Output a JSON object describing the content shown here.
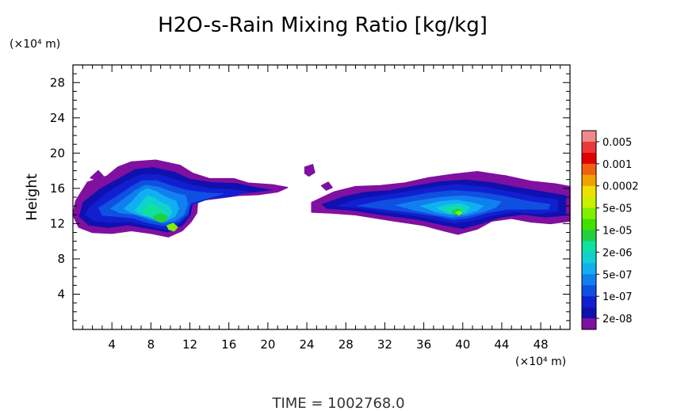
{
  "chart_data": {
    "type": "heatmap",
    "title": "H2O-s-Rain Mixing Ratio [kg/kg]",
    "xlabel": "",
    "ylabel": "Height",
    "x_unit_label": "(×10⁴ m)",
    "y_unit_label": "(×10⁴ m)",
    "xlim": [
      0,
      51
    ],
    "ylim": [
      0,
      30
    ],
    "x_ticks": [
      4,
      8,
      12,
      16,
      20,
      24,
      28,
      32,
      36,
      40,
      44,
      48
    ],
    "y_ticks": [
      4,
      8,
      12,
      16,
      20,
      24,
      28
    ],
    "footer": "TIME = 1002768.0",
    "colorbar": {
      "label_values": [
        "0.005",
        "0.001",
        "0.0002",
        "5e-05",
        "1e-05",
        "2e-06",
        "5e-07",
        "1e-07",
        "2e-08"
      ],
      "colors_top_to_bottom": [
        "#f08a8a",
        "#e83a3a",
        "#e00000",
        "#f06010",
        "#f0a000",
        "#f0e000",
        "#c8f000",
        "#80f000",
        "#40e000",
        "#20d040",
        "#10e0a0",
        "#10d0d0",
        "#10b0f0",
        "#1080f0",
        "#1050e0",
        "#1020d0",
        "#1010b0",
        "#8010a0"
      ]
    },
    "regions": [
      {
        "level": 1,
        "points": [
          [
            0.3,
            14.6
          ],
          [
            1.5,
            16.7
          ],
          [
            3.5,
            17.4
          ],
          [
            4.6,
            18.4
          ],
          [
            6.0,
            19.0
          ],
          [
            8.5,
            19.2
          ],
          [
            11.0,
            18.6
          ],
          [
            12.3,
            17.7
          ],
          [
            14.0,
            17.1
          ],
          [
            16.5,
            17.1
          ],
          [
            18.0,
            16.6
          ],
          [
            20.5,
            16.4
          ],
          [
            22.0,
            16.1
          ],
          [
            21.0,
            15.6
          ],
          [
            19.0,
            15.3
          ],
          [
            17.0,
            15.2
          ],
          [
            15.0,
            14.9
          ],
          [
            12.8,
            14.6
          ],
          [
            12.7,
            13.2
          ],
          [
            12.1,
            12.2
          ],
          [
            11.2,
            11.2
          ],
          [
            9.8,
            10.5
          ],
          [
            8.0,
            10.9
          ],
          [
            6.0,
            11.2
          ],
          [
            4.0,
            10.9
          ],
          [
            2.0,
            11.0
          ],
          [
            0.6,
            11.6
          ],
          [
            0.0,
            13.0
          ]
        ]
      },
      {
        "level": 1,
        "points": [
          [
            24.5,
            14.4
          ],
          [
            26.8,
            15.6
          ],
          [
            29.0,
            16.2
          ],
          [
            31.5,
            16.3
          ],
          [
            34.0,
            16.6
          ],
          [
            36.5,
            17.2
          ],
          [
            39.0,
            17.6
          ],
          [
            41.5,
            17.9
          ],
          [
            44.5,
            17.4
          ],
          [
            47.0,
            16.8
          ],
          [
            49.5,
            16.5
          ],
          [
            51.0,
            16.2
          ],
          [
            51.0,
            12.3
          ],
          [
            49.0,
            12.0
          ],
          [
            47.0,
            12.2
          ],
          [
            45.0,
            12.6
          ],
          [
            43.0,
            12.3
          ],
          [
            41.5,
            11.4
          ],
          [
            39.5,
            10.8
          ],
          [
            38.0,
            11.2
          ],
          [
            36.0,
            11.8
          ],
          [
            33.0,
            12.3
          ],
          [
            29.0,
            13.0
          ],
          [
            26.5,
            13.2
          ],
          [
            24.5,
            13.3
          ]
        ]
      },
      {
        "level": 1,
        "points": [
          [
            23.8,
            18.4
          ],
          [
            24.6,
            18.7
          ],
          [
            24.8,
            17.8
          ],
          [
            24.2,
            17.4
          ],
          [
            23.8,
            17.7
          ]
        ]
      },
      {
        "level": 1,
        "points": [
          [
            25.5,
            16.3
          ],
          [
            26.2,
            16.7
          ],
          [
            26.6,
            16.1
          ],
          [
            26.0,
            15.8
          ]
        ]
      },
      {
        "level": 1,
        "points": [
          [
            1.8,
            17.2
          ],
          [
            2.6,
            18.0
          ],
          [
            3.1,
            17.4
          ],
          [
            2.5,
            16.9
          ]
        ]
      },
      {
        "level": 2,
        "points": [
          [
            1.0,
            14.4
          ],
          [
            2.8,
            16.0
          ],
          [
            4.8,
            17.2
          ],
          [
            6.4,
            18.2
          ],
          [
            8.2,
            18.4
          ],
          [
            10.4,
            17.9
          ],
          [
            12.0,
            17.1
          ],
          [
            14.3,
            16.7
          ],
          [
            16.8,
            16.6
          ],
          [
            19.0,
            16.1
          ],
          [
            20.5,
            15.8
          ],
          [
            18.2,
            15.5
          ],
          [
            16.0,
            15.3
          ],
          [
            14.0,
            15.0
          ],
          [
            12.3,
            14.3
          ],
          [
            12.1,
            13.0
          ],
          [
            11.3,
            11.8
          ],
          [
            9.7,
            11.0
          ],
          [
            7.8,
            11.4
          ],
          [
            5.6,
            11.8
          ],
          [
            3.6,
            11.5
          ],
          [
            1.6,
            11.8
          ],
          [
            0.6,
            12.8
          ]
        ]
      },
      {
        "level": 2,
        "points": [
          [
            25.5,
            14.2
          ],
          [
            27.8,
            15.1
          ],
          [
            30.0,
            15.6
          ],
          [
            32.5,
            15.8
          ],
          [
            35.0,
            16.3
          ],
          [
            37.6,
            16.8
          ],
          [
            40.3,
            17.0
          ],
          [
            43.0,
            16.7
          ],
          [
            45.8,
            16.1
          ],
          [
            48.5,
            15.6
          ],
          [
            50.6,
            15.2
          ],
          [
            50.6,
            12.9
          ],
          [
            48.5,
            12.7
          ],
          [
            46.2,
            13.0
          ],
          [
            44.0,
            12.7
          ],
          [
            42.0,
            12.0
          ],
          [
            40.0,
            11.4
          ],
          [
            38.0,
            11.8
          ],
          [
            35.5,
            12.4
          ],
          [
            32.0,
            12.9
          ],
          [
            28.5,
            13.5
          ],
          [
            26.0,
            13.7
          ]
        ]
      },
      {
        "level": 3,
        "points": [
          [
            1.8,
            14.0
          ],
          [
            3.6,
            15.6
          ],
          [
            5.4,
            16.8
          ],
          [
            7.0,
            17.6
          ],
          [
            8.8,
            17.6
          ],
          [
            10.6,
            17.0
          ],
          [
            12.2,
            16.4
          ],
          [
            14.2,
            16.0
          ],
          [
            16.4,
            15.9
          ],
          [
            18.2,
            15.6
          ],
          [
            16.0,
            15.0
          ],
          [
            14.0,
            14.8
          ],
          [
            12.0,
            14.0
          ],
          [
            11.9,
            12.9
          ],
          [
            11.0,
            12.0
          ],
          [
            9.6,
            11.3
          ],
          [
            7.8,
            11.7
          ],
          [
            5.8,
            12.2
          ],
          [
            4.0,
            12.1
          ],
          [
            2.2,
            12.3
          ],
          [
            1.2,
            13.0
          ]
        ]
      },
      {
        "level": 3,
        "points": [
          [
            27.0,
            14.0
          ],
          [
            29.2,
            14.8
          ],
          [
            31.6,
            15.2
          ],
          [
            34.0,
            15.6
          ],
          [
            36.6,
            16.1
          ],
          [
            39.3,
            16.5
          ],
          [
            42.0,
            16.2
          ],
          [
            44.6,
            15.7
          ],
          [
            47.4,
            15.1
          ],
          [
            49.8,
            14.7
          ],
          [
            49.8,
            13.4
          ],
          [
            47.6,
            13.1
          ],
          [
            45.2,
            13.3
          ],
          [
            43.0,
            12.9
          ],
          [
            41.0,
            12.3
          ],
          [
            39.2,
            12.0
          ],
          [
            37.4,
            12.4
          ],
          [
            35.0,
            12.9
          ],
          [
            32.0,
            13.3
          ],
          [
            29.0,
            13.8
          ]
        ]
      },
      {
        "level": 4,
        "points": [
          [
            2.6,
            13.8
          ],
          [
            4.3,
            15.0
          ],
          [
            5.8,
            16.1
          ],
          [
            7.1,
            16.9
          ],
          [
            8.6,
            16.9
          ],
          [
            10.2,
            16.3
          ],
          [
            11.8,
            15.8
          ],
          [
            13.8,
            15.5
          ],
          [
            15.6,
            15.4
          ],
          [
            14.0,
            14.9
          ],
          [
            12.1,
            14.3
          ],
          [
            11.8,
            13.1
          ],
          [
            10.9,
            12.2
          ],
          [
            9.5,
            11.7
          ],
          [
            7.9,
            12.0
          ],
          [
            6.1,
            12.6
          ],
          [
            4.3,
            12.8
          ],
          [
            3.0,
            12.9
          ]
        ]
      },
      {
        "level": 4,
        "points": [
          [
            29.0,
            14.0
          ],
          [
            31.5,
            14.6
          ],
          [
            34.0,
            15.0
          ],
          [
            36.5,
            15.5
          ],
          [
            39.0,
            15.8
          ],
          [
            41.6,
            15.6
          ],
          [
            44.0,
            15.2
          ],
          [
            46.6,
            14.6
          ],
          [
            49.0,
            14.2
          ],
          [
            48.8,
            13.6
          ],
          [
            46.6,
            13.6
          ],
          [
            44.6,
            13.6
          ],
          [
            42.6,
            13.2
          ],
          [
            40.6,
            12.6
          ],
          [
            39.0,
            12.4
          ],
          [
            37.4,
            12.8
          ],
          [
            35.0,
            13.2
          ],
          [
            32.0,
            13.6
          ]
        ]
      },
      {
        "level": 5,
        "points": [
          [
            3.8,
            13.7
          ],
          [
            5.2,
            14.8
          ],
          [
            6.4,
            15.8
          ],
          [
            7.4,
            16.4
          ],
          [
            8.7,
            16.2
          ],
          [
            10.2,
            15.6
          ],
          [
            11.6,
            15.2
          ],
          [
            11.8,
            14.2
          ],
          [
            11.4,
            13.0
          ],
          [
            10.5,
            12.3
          ],
          [
            9.3,
            12.0
          ],
          [
            7.9,
            12.4
          ],
          [
            6.3,
            13.0
          ],
          [
            4.8,
            13.2
          ]
        ]
      },
      {
        "level": 5,
        "points": [
          [
            33.0,
            14.1
          ],
          [
            35.2,
            14.6
          ],
          [
            37.6,
            15.0
          ],
          [
            40.0,
            15.2
          ],
          [
            42.2,
            14.9
          ],
          [
            44.0,
            14.5
          ],
          [
            43.4,
            13.8
          ],
          [
            41.8,
            13.2
          ],
          [
            40.2,
            12.8
          ],
          [
            38.8,
            12.7
          ],
          [
            37.2,
            13.0
          ],
          [
            35.0,
            13.5
          ]
        ]
      },
      {
        "level": 6,
        "points": [
          [
            5.2,
            13.7
          ],
          [
            6.1,
            14.6
          ],
          [
            6.9,
            15.6
          ],
          [
            7.6,
            16.0
          ],
          [
            8.5,
            15.7
          ],
          [
            9.6,
            15.0
          ],
          [
            10.6,
            14.6
          ],
          [
            10.9,
            13.7
          ],
          [
            10.5,
            12.8
          ],
          [
            9.6,
            12.3
          ],
          [
            8.5,
            12.4
          ],
          [
            7.3,
            12.8
          ],
          [
            6.0,
            13.2
          ]
        ]
      },
      {
        "level": 6,
        "points": [
          [
            35.6,
            14.0
          ],
          [
            37.4,
            14.5
          ],
          [
            39.3,
            14.7
          ],
          [
            41.0,
            14.4
          ],
          [
            42.2,
            14.0
          ],
          [
            41.4,
            13.4
          ],
          [
            40.1,
            13.0
          ],
          [
            38.7,
            13.0
          ],
          [
            37.2,
            13.3
          ]
        ]
      },
      {
        "level": 7,
        "points": [
          [
            6.3,
            13.5
          ],
          [
            7.0,
            14.4
          ],
          [
            7.6,
            15.2
          ],
          [
            8.3,
            15.0
          ],
          [
            9.1,
            14.4
          ],
          [
            9.9,
            14.0
          ],
          [
            10.2,
            13.3
          ],
          [
            9.8,
            12.7
          ],
          [
            9.0,
            12.4
          ],
          [
            8.0,
            12.7
          ],
          [
            7.0,
            13.0
          ]
        ]
      },
      {
        "level": 7,
        "points": [
          [
            37.2,
            13.8
          ],
          [
            38.5,
            14.2
          ],
          [
            39.8,
            14.3
          ],
          [
            40.8,
            13.9
          ],
          [
            40.4,
            13.3
          ],
          [
            39.4,
            13.0
          ],
          [
            38.3,
            13.2
          ]
        ]
      },
      {
        "level": 8,
        "points": [
          [
            7.0,
            13.3
          ],
          [
            7.6,
            14.1
          ],
          [
            8.2,
            14.3
          ],
          [
            8.8,
            13.8
          ],
          [
            9.5,
            13.4
          ],
          [
            9.7,
            12.9
          ],
          [
            9.1,
            12.5
          ],
          [
            8.2,
            12.7
          ],
          [
            7.5,
            12.9
          ]
        ]
      },
      {
        "level": 8,
        "points": [
          [
            38.0,
            13.6
          ],
          [
            38.9,
            14.0
          ],
          [
            39.9,
            13.9
          ],
          [
            40.2,
            13.5
          ],
          [
            39.6,
            13.1
          ],
          [
            38.8,
            13.2
          ]
        ]
      },
      {
        "level": 9,
        "points": [
          [
            8.2,
            12.8
          ],
          [
            9.0,
            13.2
          ],
          [
            9.7,
            12.9
          ],
          [
            9.6,
            12.3
          ],
          [
            9.0,
            12.1
          ],
          [
            8.4,
            12.4
          ]
        ]
      },
      {
        "level": 9,
        "points": [
          [
            38.8,
            13.4
          ],
          [
            39.5,
            13.7
          ],
          [
            40.0,
            13.4
          ],
          [
            39.6,
            13.0
          ],
          [
            39.0,
            13.1
          ]
        ]
      },
      {
        "level": 11,
        "points": [
          [
            9.6,
            11.8
          ],
          [
            10.3,
            12.1
          ],
          [
            10.8,
            11.6
          ],
          [
            10.4,
            11.1
          ],
          [
            9.8,
            11.3
          ]
        ]
      },
      {
        "level": 11,
        "points": [
          [
            39.2,
            13.3
          ],
          [
            39.7,
            13.5
          ],
          [
            40.0,
            13.2
          ],
          [
            39.6,
            12.9
          ]
        ]
      }
    ]
  }
}
